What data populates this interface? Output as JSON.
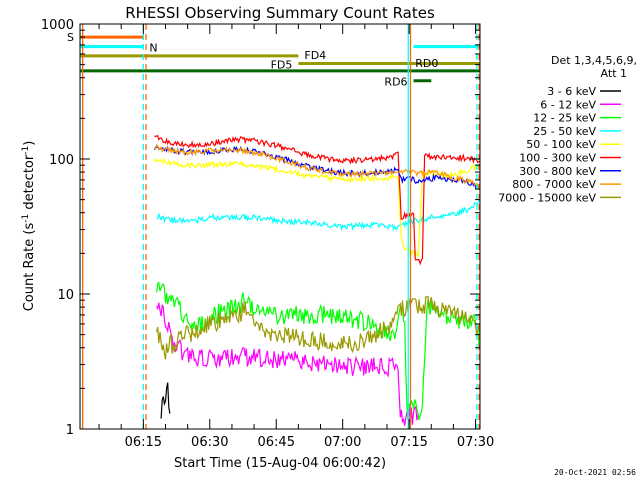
{
  "chart_data": {
    "type": "line",
    "title": "RHESSI Observing Summary Count Rates",
    "xlabel": "Start Time (15-Aug-04 06:00:42)",
    "ylabel_main": "Count Rate (s",
    "ylabel_sup1": "-1",
    "ylabel_mid": " detector",
    "ylabel_sup2": "-1",
    "ylabel_end": ")",
    "yscale": "log",
    "ylim": [
      1,
      1000
    ],
    "xlim_minutes": [
      0.7,
      91.0
    ],
    "x_ticks": [
      {
        "t": 15,
        "label": "06:15"
      },
      {
        "t": 30,
        "label": "06:30"
      },
      {
        "t": 45,
        "label": "06:45"
      },
      {
        "t": 60,
        "label": "07:00"
      },
      {
        "t": 75,
        "label": "07:15"
      },
      {
        "t": 90,
        "label": "07:30"
      }
    ],
    "y_ticks": [
      {
        "v": 1,
        "label": "1"
      },
      {
        "v": 10,
        "label": "10"
      },
      {
        "v": 100,
        "label": "100"
      },
      {
        "v": 1000,
        "label": "1000"
      }
    ],
    "legend_header": [
      "Det 1,3,4,5,6,9,",
      "Att 1"
    ],
    "series": [
      {
        "name": "3 - 6 keV",
        "color": "#000000",
        "points": [
          [
            19,
            1.4
          ],
          [
            19.5,
            1.9
          ],
          [
            20,
            1.6
          ],
          [
            20.5,
            1.9
          ],
          [
            21,
            1.3
          ]
        ]
      },
      {
        "name": "6 - 12 keV",
        "color": "#ff00ff",
        "points": [
          [
            18,
            9.5
          ],
          [
            19,
            8
          ],
          [
            20,
            6
          ],
          [
            22,
            4.5
          ],
          [
            24,
            3.6
          ],
          [
            27,
            3.4
          ],
          [
            30,
            3.4
          ],
          [
            35,
            3.4
          ],
          [
            40,
            3.4
          ],
          [
            45,
            3.3
          ],
          [
            50,
            3.2
          ],
          [
            55,
            3.0
          ],
          [
            60,
            2.9
          ],
          [
            65,
            2.9
          ],
          [
            70,
            2.9
          ],
          [
            72.5,
            2.9
          ],
          [
            73,
            1.3
          ],
          [
            73.5,
            1.2
          ],
          [
            75,
            1.3
          ],
          [
            76,
            1.2
          ],
          [
            77,
            1.3
          ]
        ]
      },
      {
        "name": "12 - 25 keV",
        "color": "#00ff00",
        "points": [
          [
            18,
            12
          ],
          [
            20,
            10
          ],
          [
            22,
            9
          ],
          [
            24,
            7
          ],
          [
            26,
            6.5
          ],
          [
            28,
            6
          ],
          [
            30,
            6.8
          ],
          [
            33,
            7.5
          ],
          [
            36,
            8
          ],
          [
            38,
            9
          ],
          [
            40,
            7.5
          ],
          [
            45,
            7
          ],
          [
            50,
            7
          ],
          [
            55,
            7
          ],
          [
            60,
            7
          ],
          [
            65,
            6.2
          ],
          [
            70,
            5.2
          ],
          [
            72,
            4.5
          ],
          [
            73,
            7
          ],
          [
            74,
            7.2
          ],
          [
            74.5,
            1.3
          ],
          [
            76,
            1.5
          ],
          [
            77,
            1.2
          ],
          [
            78,
            1.4
          ],
          [
            79,
            8
          ],
          [
            82,
            7
          ],
          [
            85,
            6.5
          ],
          [
            88,
            6.2
          ],
          [
            90,
            6
          ],
          [
            91,
            4
          ]
        ]
      },
      {
        "name": "25 - 50 keV",
        "color": "#00ffff",
        "points": [
          [
            18,
            38
          ],
          [
            20,
            36
          ],
          [
            23,
            35
          ],
          [
            27,
            35
          ],
          [
            30,
            37
          ],
          [
            33,
            37
          ],
          [
            36,
            37
          ],
          [
            40,
            37
          ],
          [
            43,
            36
          ],
          [
            46,
            35
          ],
          [
            50,
            34
          ],
          [
            55,
            33
          ],
          [
            58,
            32
          ],
          [
            60,
            31.5
          ],
          [
            63,
            32
          ],
          [
            66,
            32.5
          ],
          [
            70,
            32
          ],
          [
            72,
            31
          ],
          [
            73,
            32
          ],
          [
            75,
            34
          ],
          [
            77,
            35
          ],
          [
            80,
            37
          ],
          [
            83,
            38
          ],
          [
            86,
            40
          ],
          [
            89,
            43
          ],
          [
            91,
            50
          ]
        ]
      },
      {
        "name": "50 - 100 keV",
        "color": "#ffff00",
        "points": [
          [
            17.5,
            100
          ],
          [
            19,
            96
          ],
          [
            22,
            92
          ],
          [
            25,
            90
          ],
          [
            28,
            90
          ],
          [
            30,
            91
          ],
          [
            33,
            92
          ],
          [
            36,
            91
          ],
          [
            39,
            90
          ],
          [
            42,
            88
          ],
          [
            45,
            84
          ],
          [
            48,
            80
          ],
          [
            51,
            76
          ],
          [
            54,
            74
          ],
          [
            57,
            72
          ],
          [
            60,
            71
          ],
          [
            64,
            71
          ],
          [
            68,
            72
          ],
          [
            71,
            73
          ],
          [
            72.5,
            75
          ],
          [
            73.2,
            27
          ],
          [
            74,
            21
          ],
          [
            76,
            20
          ],
          [
            77,
            19
          ],
          [
            78,
            76
          ],
          [
            80,
            78
          ],
          [
            82,
            76
          ],
          [
            84,
            75
          ],
          [
            86,
            78
          ],
          [
            88,
            82
          ],
          [
            90,
            88
          ],
          [
            91,
            90
          ]
        ]
      },
      {
        "name": "100 - 300 keV",
        "color": "#ff0000",
        "points": [
          [
            17.5,
            155
          ],
          [
            19,
            140
          ],
          [
            22,
            130
          ],
          [
            25,
            128
          ],
          [
            28,
            128
          ],
          [
            30,
            130
          ],
          [
            33,
            136
          ],
          [
            36,
            140
          ],
          [
            39,
            138
          ],
          [
            42,
            132
          ],
          [
            45,
            126
          ],
          [
            48,
            118
          ],
          [
            51,
            110
          ],
          [
            54,
            104
          ],
          [
            57,
            100
          ],
          [
            60,
            98
          ],
          [
            64,
            98
          ],
          [
            68,
            100
          ],
          [
            71,
            104
          ],
          [
            72.5,
            108
          ],
          [
            73.2,
            37
          ],
          [
            74,
            38
          ],
          [
            75,
            38
          ],
          [
            76,
            38
          ],
          [
            76.4,
            18
          ],
          [
            77.5,
            17
          ],
          [
            78,
            18
          ],
          [
            78.5,
            105
          ],
          [
            81,
            104
          ],
          [
            84,
            103
          ],
          [
            87,
            102
          ],
          [
            89,
            100
          ],
          [
            91,
            95
          ]
        ]
      },
      {
        "name": "300 - 800 keV",
        "color": "#0000ff",
        "points": [
          [
            17.5,
            122
          ],
          [
            19,
            118
          ],
          [
            22,
            115
          ],
          [
            25,
            113
          ],
          [
            28,
            113
          ],
          [
            30,
            114
          ],
          [
            33,
            116
          ],
          [
            36,
            117
          ],
          [
            39,
            115
          ],
          [
            42,
            110
          ],
          [
            45,
            104
          ],
          [
            48,
            97
          ],
          [
            51,
            90
          ],
          [
            54,
            85
          ],
          [
            57,
            81
          ],
          [
            60,
            79
          ],
          [
            64,
            78
          ],
          [
            68,
            80
          ],
          [
            71,
            81
          ],
          [
            72.5,
            83
          ],
          [
            73.2,
            70
          ],
          [
            75,
            72
          ],
          [
            77,
            68
          ],
          [
            79,
            70
          ],
          [
            81,
            73
          ],
          [
            83,
            72
          ],
          [
            85,
            70
          ],
          [
            87,
            69
          ],
          [
            89,
            66
          ],
          [
            91,
            62
          ]
        ]
      },
      {
        "name": "800 - 7000 keV",
        "color": "#ff9900",
        "points": [
          [
            17.5,
            125
          ],
          [
            19,
            120
          ],
          [
            22,
            115
          ],
          [
            25,
            112
          ],
          [
            28,
            113
          ],
          [
            30,
            115
          ],
          [
            33,
            117
          ],
          [
            36,
            116
          ],
          [
            39,
            113
          ],
          [
            42,
            108
          ],
          [
            45,
            102
          ],
          [
            48,
            95
          ],
          [
            51,
            88
          ],
          [
            54,
            83
          ],
          [
            57,
            80
          ],
          [
            60,
            78
          ],
          [
            64,
            77
          ],
          [
            68,
            79
          ],
          [
            71,
            80
          ],
          [
            72.5,
            82
          ],
          [
            75,
            80
          ],
          [
            77,
            78
          ],
          [
            79,
            80
          ],
          [
            81,
            79
          ],
          [
            83,
            76
          ],
          [
            85,
            73
          ],
          [
            87,
            70
          ],
          [
            89,
            67
          ],
          [
            91,
            62
          ]
        ]
      },
      {
        "name": "7000 - 15000 keV",
        "color": "#999900",
        "points": [
          [
            18,
            6
          ],
          [
            19,
            4.2
          ],
          [
            20,
            3.8
          ],
          [
            21,
            4.5
          ],
          [
            22,
            3.8
          ],
          [
            23,
            4.5
          ],
          [
            24,
            5
          ],
          [
            26,
            5.2
          ],
          [
            28,
            5.5
          ],
          [
            30,
            6
          ],
          [
            33,
            6.5
          ],
          [
            36,
            7
          ],
          [
            38,
            7.5
          ],
          [
            40,
            6.5
          ],
          [
            42,
            5.5
          ],
          [
            45,
            5
          ],
          [
            48,
            5
          ],
          [
            50,
            4.7
          ],
          [
            55,
            4.5
          ],
          [
            60,
            4.3
          ],
          [
            63,
            4.4
          ],
          [
            65,
            4.5
          ],
          [
            67,
            5
          ],
          [
            70,
            5.5
          ],
          [
            72,
            6.8
          ],
          [
            73,
            7.5
          ],
          [
            75,
            8
          ],
          [
            77,
            8
          ],
          [
            79,
            8.5
          ],
          [
            81,
            8.2
          ],
          [
            83,
            7.5
          ],
          [
            85,
            7
          ],
          [
            87,
            6.5
          ],
          [
            89,
            6
          ],
          [
            91,
            5
          ]
        ]
      }
    ],
    "segments": [
      {
        "label": "S",
        "color": "#ff6600",
        "start": 0.7,
        "end": 15,
        "y": 800
      },
      {
        "label": "N",
        "color": "#00ffff",
        "start": 0.7,
        "end": 15,
        "y": 680
      },
      {
        "label": "N",
        "color": "#00ffff",
        "start": 76,
        "end": 91,
        "y": 680
      },
      {
        "label": "FD4",
        "color": "#999900",
        "start": 0.7,
        "end": 50,
        "y": 580
      },
      {
        "label": "FD5",
        "color": "#999900",
        "start": 50,
        "end": 91,
        "y": 510
      },
      {
        "label": "RD0",
        "color": "#006600",
        "start": 0.7,
        "end": 91,
        "y": 450
      },
      {
        "label": "RD6",
        "color": "#006600",
        "start": 76,
        "end": 80,
        "y": 380
      }
    ],
    "vertical_markers": [
      {
        "t": 0.7,
        "color": "#00ffff",
        "style": "solid"
      },
      {
        "t": 1.3,
        "color": "#ff6600",
        "style": "solid"
      },
      {
        "t": 15,
        "color": "#00ffff",
        "style": "dashed"
      },
      {
        "t": 15.6,
        "color": "#ff6600",
        "style": "dashed"
      },
      {
        "t": 74.8,
        "color": "#00ffff",
        "style": "solid"
      },
      {
        "t": 75.3,
        "color": "#ff6600",
        "style": "solid"
      },
      {
        "t": 90.3,
        "color": "#00ffff",
        "style": "dashed"
      },
      {
        "t": 90.8,
        "color": "#ff6600",
        "style": "dashed"
      }
    ],
    "timestamp": "20-Oct-2021 02:56"
  }
}
